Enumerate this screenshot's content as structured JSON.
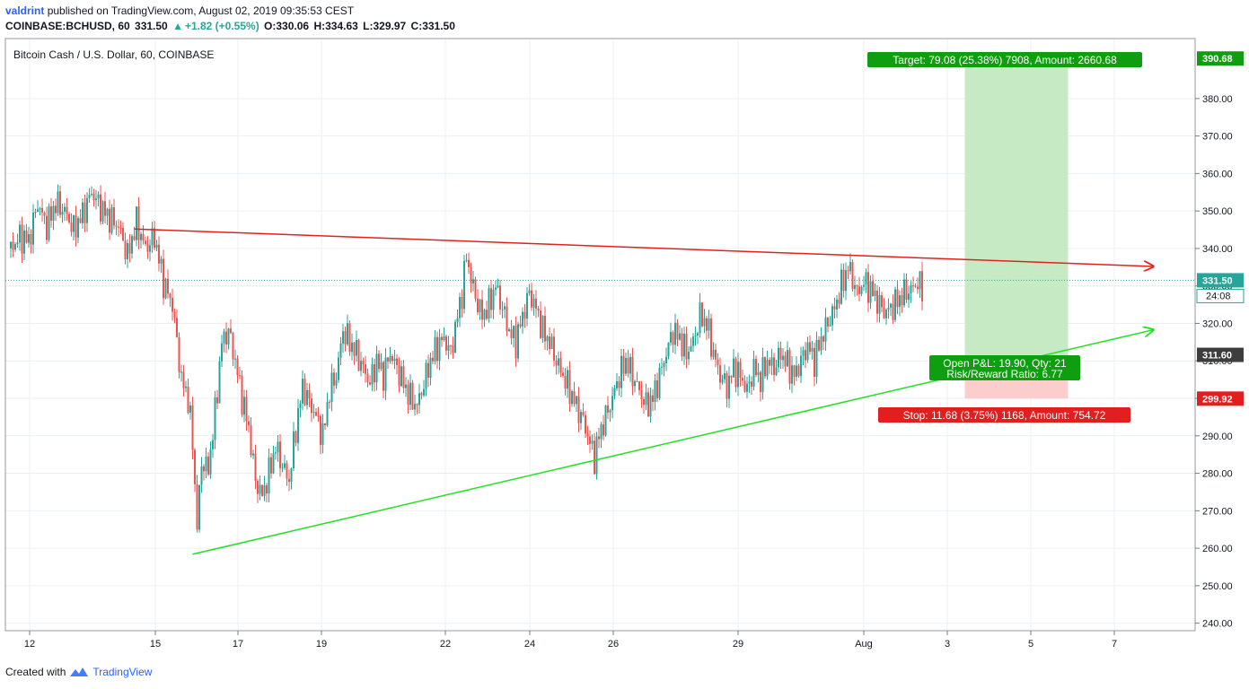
{
  "header": {
    "user": "valdrint",
    "published_text": "published on TradingView.com, August 02, 2019 09:35:53 CEST",
    "symbol": "COINBASE:BCHUSD, 60",
    "last": "331.50",
    "change_icon": "triangle-up-icon",
    "change": "+1.82 (+0.55%)",
    "open": "O:330.06",
    "high": "H:334.63",
    "low": "L:329.97",
    "close": "C:331.50"
  },
  "legend": {
    "title": "Bitcoin Cash / U.S. Dollar, 60, COINBASE"
  },
  "footer": {
    "created_with": "Created with",
    "brand": "TradingView",
    "logo_icon": "tradingview-logo-icon"
  },
  "colors": {
    "up": "#26a69a",
    "down": "#ef5350",
    "resistance": "#e0221b",
    "support": "#22e022",
    "target": "#c6ebc4",
    "stop": "#fbcdcd",
    "label_green": "#0f9e0f",
    "label_red": "#e31e1e",
    "grid": "#eceff2"
  },
  "annotations": {
    "target_label": "Target: 79.08 (25.38%) 7908, Amount: 2660.68",
    "stop_label": "Stop: 11.68 (3.75%) 1168, Amount: 754.72",
    "pnl_label_1": "Open P&L: 19.90, Qty: 21",
    "pnl_label_2": "Risk/Reward Ratio: 6.77"
  },
  "price_tags": {
    "target": "390.68",
    "current": "331.50",
    "countdown": "24:08",
    "entry": "311.60",
    "stop": "299.92"
  },
  "chart_data": {
    "type": "candlestick",
    "x_start": "2019-07-11",
    "x_ticks": [
      "12",
      "15",
      "17",
      "19",
      "22",
      "24",
      "26",
      "29",
      "Aug",
      "3",
      "5",
      "7"
    ],
    "y_ticks": [
      "240.00",
      "250.00",
      "260.00",
      "270.00",
      "280.00",
      "290.00",
      "300.00",
      "310.00",
      "320.00",
      "330.00",
      "340.00",
      "350.00",
      "360.00",
      "370.00",
      "380.00"
    ],
    "ylim": [
      238,
      396
    ],
    "close_path": [
      [
        0,
        340
      ],
      [
        8,
        343
      ],
      [
        16,
        342
      ],
      [
        24,
        352
      ],
      [
        32,
        346
      ],
      [
        40,
        352
      ],
      [
        48,
        350
      ],
      [
        56,
        345
      ],
      [
        64,
        349
      ],
      [
        72,
        355
      ],
      [
        80,
        351
      ],
      [
        88,
        348
      ],
      [
        96,
        346
      ],
      [
        104,
        338
      ],
      [
        112,
        347
      ],
      [
        120,
        340
      ],
      [
        128,
        343
      ],
      [
        136,
        331
      ],
      [
        144,
        325
      ],
      [
        152,
        305
      ],
      [
        158,
        300
      ],
      [
        162,
        288
      ],
      [
        166,
        266
      ],
      [
        170,
        283
      ],
      [
        176,
        281
      ],
      [
        182,
        296
      ],
      [
        188,
        315
      ],
      [
        194,
        318
      ],
      [
        200,
        310
      ],
      [
        206,
        300
      ],
      [
        212,
        292
      ],
      [
        218,
        278
      ],
      [
        224,
        274
      ],
      [
        230,
        280
      ],
      [
        236,
        287
      ],
      [
        242,
        282
      ],
      [
        248,
        278
      ],
      [
        254,
        292
      ],
      [
        260,
        303
      ],
      [
        266,
        299
      ],
      [
        272,
        295
      ],
      [
        278,
        290
      ],
      [
        284,
        302
      ],
      [
        290,
        306
      ],
      [
        296,
        318
      ],
      [
        302,
        315
      ],
      [
        308,
        312
      ],
      [
        314,
        308
      ],
      [
        320,
        304
      ],
      [
        326,
        310
      ],
      [
        332,
        306
      ],
      [
        338,
        312
      ],
      [
        344,
        308
      ],
      [
        350,
        304
      ],
      [
        356,
        300
      ],
      [
        362,
        298
      ],
      [
        368,
        304
      ],
      [
        374,
        310
      ],
      [
        380,
        314
      ],
      [
        386,
        316
      ],
      [
        392,
        312
      ],
      [
        398,
        322
      ],
      [
        402,
        328
      ],
      [
        406,
        338
      ],
      [
        410,
        332
      ],
      [
        414,
        327
      ],
      [
        420,
        322
      ],
      [
        426,
        325
      ],
      [
        432,
        330
      ],
      [
        438,
        324
      ],
      [
        444,
        318
      ],
      [
        450,
        315
      ],
      [
        456,
        322
      ],
      [
        462,
        328
      ],
      [
        468,
        324
      ],
      [
        474,
        318
      ],
      [
        480,
        315
      ],
      [
        486,
        310
      ],
      [
        492,
        306
      ],
      [
        498,
        302
      ],
      [
        504,
        298
      ],
      [
        510,
        294
      ],
      [
        516,
        288
      ],
      [
        520,
        284
      ],
      [
        524,
        290
      ],
      [
        530,
        295
      ],
      [
        536,
        300
      ],
      [
        542,
        306
      ],
      [
        548,
        310
      ],
      [
        554,
        306
      ],
      [
        560,
        302
      ],
      [
        566,
        298
      ],
      [
        572,
        300
      ],
      [
        578,
        306
      ],
      [
        584,
        312
      ],
      [
        590,
        318
      ],
      [
        596,
        316
      ],
      [
        602,
        312
      ],
      [
        608,
        315
      ],
      [
        614,
        322
      ],
      [
        620,
        320
      ],
      [
        626,
        312
      ],
      [
        632,
        306
      ],
      [
        638,
        303
      ],
      [
        644,
        308
      ],
      [
        650,
        306
      ],
      [
        656,
        302
      ],
      [
        662,
        308
      ],
      [
        668,
        305
      ],
      [
        674,
        310
      ],
      [
        680,
        308
      ],
      [
        686,
        312
      ],
      [
        692,
        309
      ],
      [
        698,
        306
      ],
      [
        704,
        310
      ],
      [
        710,
        314
      ],
      [
        716,
        310
      ],
      [
        722,
        316
      ],
      [
        728,
        320
      ],
      [
        734,
        324
      ],
      [
        740,
        330
      ],
      [
        746,
        335
      ],
      [
        750,
        332
      ],
      [
        754,
        328
      ],
      [
        760,
        331
      ],
      [
        766,
        329
      ],
      [
        772,
        326
      ],
      [
        778,
        323
      ],
      [
        784,
        324
      ],
      [
        790,
        326
      ],
      [
        796,
        328
      ],
      [
        802,
        329
      ],
      [
        808,
        331
      ],
      [
        812,
        329
      ]
    ],
    "resistance_line": {
      "from": [
        110,
        345.2
      ],
      "to": [
        1018,
        335.2
      ]
    },
    "support_line": {
      "from": [
        162,
        258.4
      ],
      "to": [
        1018,
        318.3
      ]
    },
    "position": {
      "entry": 311.6,
      "target": 390.68,
      "stop": 299.92,
      "x_from": 850,
      "x_to": 942
    }
  }
}
